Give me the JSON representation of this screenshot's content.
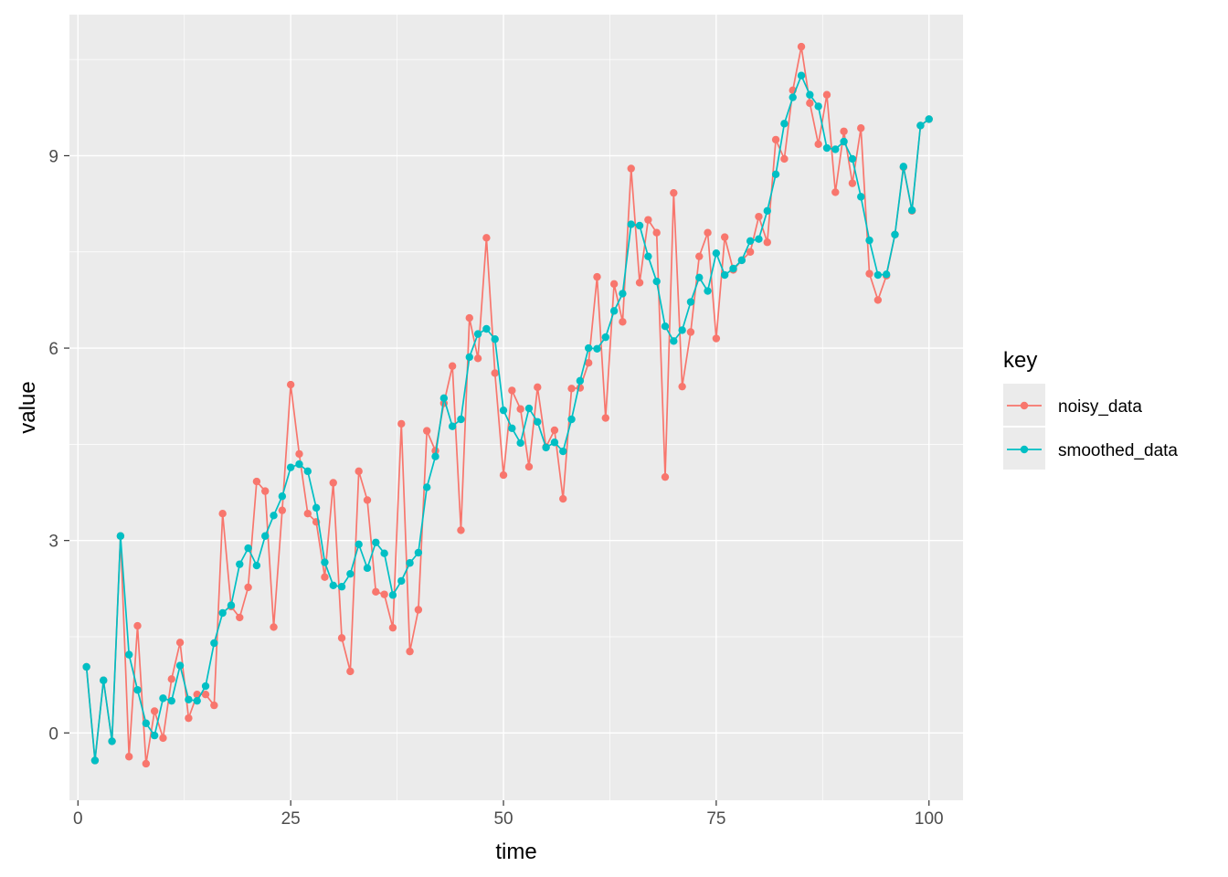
{
  "chart_data": {
    "type": "line",
    "xlabel": "time",
    "ylabel": "value",
    "xlim": [
      -1,
      104
    ],
    "ylim": [
      -1.05,
      11.2
    ],
    "x_ticks": [
      0,
      25,
      50,
      75,
      100
    ],
    "y_ticks": [
      0,
      3,
      6,
      9
    ],
    "grid": true,
    "markers": true,
    "legend": {
      "title": "key",
      "placement": "right"
    },
    "x": [
      1,
      2,
      3,
      4,
      5,
      6,
      7,
      8,
      9,
      10,
      11,
      12,
      13,
      14,
      15,
      16,
      17,
      18,
      19,
      20,
      21,
      22,
      23,
      24,
      25,
      26,
      27,
      28,
      29,
      30,
      31,
      32,
      33,
      34,
      35,
      36,
      37,
      38,
      39,
      40,
      41,
      42,
      43,
      44,
      45,
      46,
      47,
      48,
      49,
      50,
      51,
      52,
      53,
      54,
      55,
      56,
      57,
      58,
      59,
      60,
      61,
      62,
      63,
      64,
      65,
      66,
      67,
      68,
      69,
      70,
      71,
      72,
      73,
      74,
      75,
      76,
      77,
      78,
      79,
      80,
      81,
      82,
      83,
      84,
      85,
      86,
      87,
      88,
      89,
      90,
      91,
      92,
      93,
      94,
      95,
      96,
      97,
      98,
      99,
      100
    ],
    "series": [
      {
        "name": "noisy_data",
        "color": "#F8766D",
        "values": [
          1.03,
          -0.43,
          0.82,
          -0.13,
          3.07,
          -0.37,
          1.67,
          -0.48,
          0.34,
          -0.08,
          0.84,
          1.41,
          0.23,
          0.6,
          0.6,
          0.43,
          3.42,
          1.97,
          1.8,
          2.27,
          3.92,
          3.77,
          1.65,
          3.47,
          5.43,
          4.35,
          3.42,
          3.29,
          2.43,
          3.9,
          1.48,
          0.96,
          4.08,
          3.63,
          2.2,
          2.16,
          1.64,
          4.82,
          1.27,
          1.92,
          4.71,
          4.4,
          5.14,
          5.72,
          3.16,
          6.47,
          5.84,
          7.72,
          5.61,
          4.02,
          5.34,
          5.05,
          4.15,
          5.39,
          4.46,
          4.72,
          3.65,
          5.37,
          5.38,
          5.77,
          7.11,
          4.91,
          7.0,
          6.41,
          8.8,
          7.02,
          8.0,
          7.8,
          3.99,
          8.42,
          5.4,
          6.25,
          7.43,
          7.8,
          6.15,
          7.73,
          7.22,
          7.37,
          7.5,
          8.05,
          7.65,
          9.25,
          8.95,
          10.02,
          10.7,
          9.82,
          9.18,
          9.95,
          8.43,
          9.38,
          8.57,
          9.43,
          7.16,
          6.75,
          7.13,
          7.77,
          8.82,
          8.14,
          9.47,
          9.57
        ]
      },
      {
        "name": "smoothed_data",
        "color": "#00BFC4",
        "values": [
          1.03,
          -0.43,
          0.82,
          -0.13,
          3.07,
          1.22,
          0.67,
          0.15,
          -0.04,
          0.54,
          0.5,
          1.05,
          0.52,
          0.5,
          0.73,
          1.4,
          1.87,
          1.99,
          2.63,
          2.88,
          2.61,
          3.07,
          3.39,
          3.69,
          4.14,
          4.19,
          4.08,
          3.51,
          2.66,
          2.3,
          2.28,
          2.48,
          2.94,
          2.57,
          2.97,
          2.8,
          2.15,
          2.37,
          2.65,
          2.81,
          3.83,
          4.31,
          5.22,
          4.78,
          4.89,
          5.86,
          6.22,
          6.3,
          6.14,
          5.03,
          4.75,
          4.52,
          5.06,
          4.85,
          4.45,
          4.53,
          4.39,
          4.89,
          5.49,
          6.0,
          5.99,
          6.17,
          6.58,
          6.85,
          7.93,
          7.91,
          7.43,
          7.04,
          6.34,
          6.11,
          6.28,
          6.72,
          7.1,
          6.89,
          7.48,
          7.14,
          7.24,
          7.37,
          7.67,
          7.7,
          8.14,
          8.71,
          9.5,
          9.91,
          10.25,
          9.95,
          9.77,
          9.12,
          9.1,
          9.22,
          8.95,
          8.36,
          7.68,
          7.14,
          7.15,
          7.77,
          8.83,
          8.15,
          9.47,
          9.57
        ]
      }
    ]
  }
}
